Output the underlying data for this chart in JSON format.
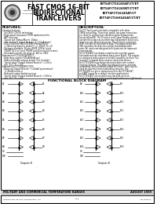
{
  "bg_color": "#ffffff",
  "header_bg": "#ffffff",
  "header_title_lines": [
    "FAST CMOS 16-BIT",
    "BIDIRECTIONAL",
    "TRANCEIVERS"
  ],
  "part_numbers": [
    "IDT54FCT16245AT/CT/ET",
    "IDT54FCT16245BT/CT/ET",
    "IDT74FCT16245AT/CT",
    "IDT74FCT16H245AT/CT/ET"
  ],
  "features_title": "FEATURES:",
  "features_lines": [
    "Common features:",
    " - 5V CMOS (CMOS) technology",
    " - High-speed, low-power CMOS replacement for",
    "   ABT functions",
    " - Typical tpd (Output/Bus+): 2Gbps",
    " - Low input and output leakage: +/- 0.5uA (max.)",
    " - ESD > 2000 per MIL-STD-883 (Method 3015),",
    "   > 200 using machine model (C >= 200pF, R = 0)",
    " - Packages available: 56 pins SSOP, 100 mil pitch",
    "   TSSOP, 16.3 mil pitch TVSOP and 25 mil pitch Ceramic",
    " - Extended commercial range of -40C to +85C",
    "Features for FCT16245/AT/BT/CT:",
    " - High drive outputs (60mA/8mA typ.)",
    " - Power of disable outputs permit 'live insertion'",
    " - Typical Input (Output Ground Bounce) < 1.0V at",
    "   min. VCC, TL = 25C",
    "Features for FCT16245BT/CT/ET:",
    " - Balanced Output Drivers: +/-24mA (symmetrical)",
    "   +/-30mA (military)",
    " - Reduced system switching noise",
    " - Typical Input (Output Ground Bounce) < 0.8V at",
    "   min. VCC, TL = 25C"
  ],
  "description_title": "DESCRIPTION:",
  "description_lines": [
    "The FCT family parts are both compatible with other",
    "CMOS technology. These high speed, low power transistors",
    "are ideal for synchronous communication between two",
    "busses (A and B). The Direction and Output Enable controls",
    "operate these devices as either two independent 8-bit trans-",
    "ceivers or one 16-bit transceiver. The direction control pin",
    "(DIR) controls the direction of data. The output enable pin",
    "(OE) overrides the direction control and disables both",
    "ports. All inputs are designed with hysteresis for improved",
    "noise margin.",
    "The FCT16245T are ideally suited for driving high capaci-",
    "tive loads and can implement back-plane buses. The outputs",
    "are designed with a power of disable capability to allow 'live",
    "insertion' in boards when used as totem-pole drivers.",
    "The FCT16245E have balanced output drive with current",
    "limiting resistors. This offers low ground bounce, minimal",
    "undershoot, and controlled output fall times - reducing the",
    "need for external series terminating resistors. The",
    "FCT16245E are pin-in replacements for the FCT16245T",
    "and ABT inputs for co-board interface applications.",
    "The FCT16245T are suited for any low bias, point-to-",
    "point long distance point to point applications on a light-based"
  ],
  "block_diagram_title": "FUNCTIONAL BLOCK DIAGRAM",
  "footer_left": "MILITARY AND COMMERCIAL TEMPERATURE RANGES",
  "footer_right": "AUGUST 1999",
  "footer_bottom_left": "INTEGRATED DEVICE TECHNOLOGY, INC.",
  "footer_bottom_center": "55-8",
  "footer_bottom_right": "DSC-8000/1"
}
